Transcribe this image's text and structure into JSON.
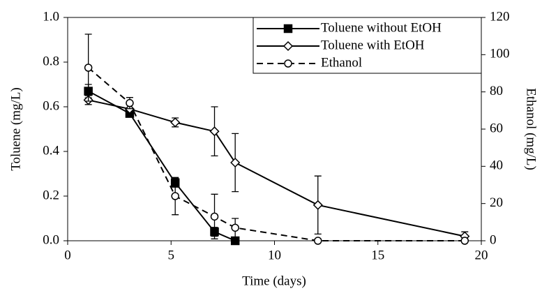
{
  "chart_data": {
    "type": "line",
    "xlabel": "Time (days)",
    "ylabel": "Toluene (mg/L)",
    "y2label": "Ethanol (mg/L)",
    "xlim": [
      0,
      20
    ],
    "xticks": [
      0,
      5,
      10,
      15,
      20
    ],
    "ylim": [
      0,
      1
    ],
    "yticks": [
      {
        "value": 0,
        "label": "0.0"
      },
      {
        "value": 0.2,
        "label": "0.2"
      },
      {
        "value": 0.4,
        "label": "0.4"
      },
      {
        "value": 0.6,
        "label": "0.6"
      },
      {
        "value": 0.8,
        "label": "0.8"
      },
      {
        "value": 1,
        "label": "1.0"
      }
    ],
    "y2lim": [
      0,
      120
    ],
    "y2ticks": [
      0,
      20,
      40,
      60,
      80,
      100,
      120
    ],
    "legend": "upper right",
    "series": [
      {
        "name": "Toluene without EtOH",
        "color": "#000000",
        "marker": "square",
        "line_style": "solid",
        "x": [
          1,
          3,
          5.2,
          7.1,
          8.1
        ],
        "values": [
          0.67,
          0.57,
          0.26,
          0.04,
          0.0
        ],
        "errors": [
          0.03,
          0.01,
          0.02,
          0.02,
          0.005
        ]
      },
      {
        "name": "Toluene with EtOH",
        "color": "#000000",
        "marker": "diamond",
        "line_style": "solid",
        "x": [
          1,
          3,
          5.2,
          7.1,
          8.1,
          12.1,
          19.2
        ],
        "values": [
          0.63,
          0.59,
          0.53,
          0.49,
          0.35,
          0.16,
          0.02
        ],
        "errors": [
          0.02,
          0.02,
          0.02,
          0.11,
          0.13,
          0.13,
          0.02
        ]
      },
      {
        "name": "Ethanol",
        "color": "#000000",
        "marker": "circle",
        "line_style": "dashed",
        "axis": "y2",
        "x": [
          1,
          3,
          5.2,
          7.1,
          8.1,
          12.1,
          19.2
        ],
        "values": [
          93,
          74,
          24,
          13,
          7,
          0,
          0
        ],
        "errors": [
          18,
          3,
          10,
          12,
          5,
          0,
          0
        ]
      }
    ]
  }
}
